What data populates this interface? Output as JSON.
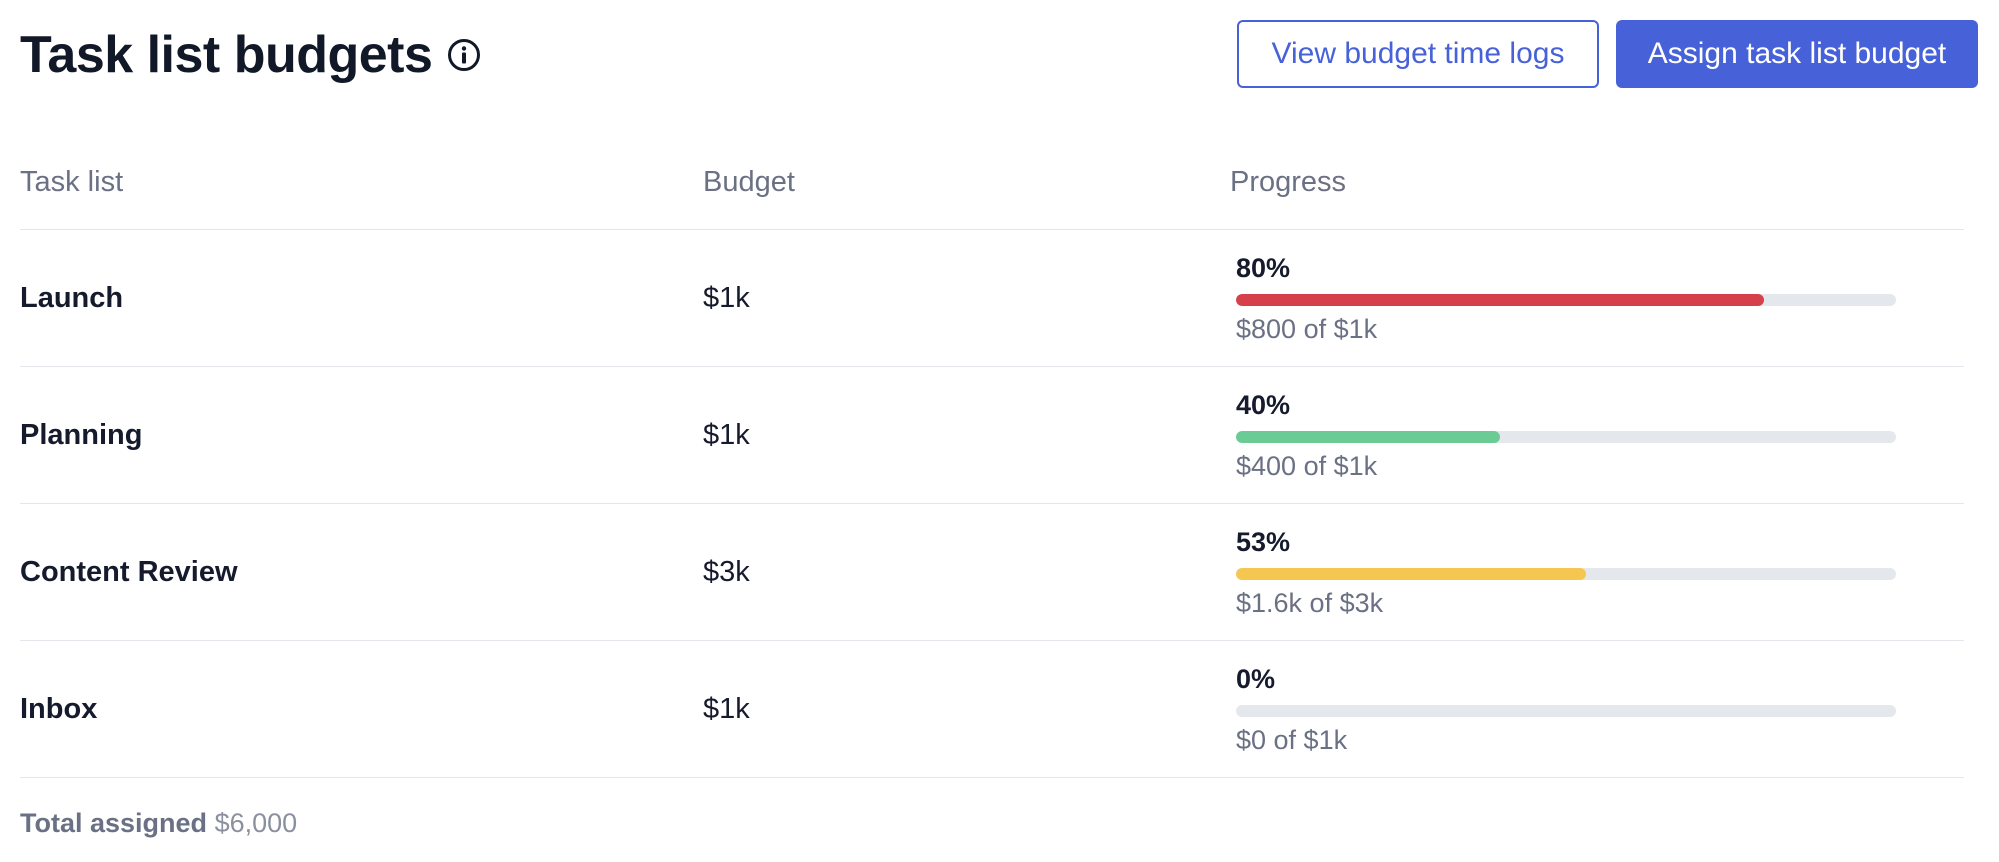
{
  "header": {
    "title": "Task list budgets",
    "view_logs_label": "View budget time logs",
    "assign_label": "Assign task list budget"
  },
  "table": {
    "columns": {
      "task": "Task list",
      "budget": "Budget",
      "progress": "Progress"
    },
    "rows": [
      {
        "task": "Launch",
        "budget": "$1k",
        "percent_label": "80%",
        "progress": 0.8,
        "spent": "$800 of $1k",
        "color": "#d5404a"
      },
      {
        "task": "Planning",
        "budget": "$1k",
        "percent_label": "40%",
        "progress": 0.4,
        "spent": "$400 of $1k",
        "color": "#6bcb94"
      },
      {
        "task": "Content Review",
        "budget": "$3k",
        "percent_label": "53%",
        "progress": 0.53,
        "spent": "$1.6k of $3k",
        "color": "#f5c750"
      },
      {
        "task": "Inbox",
        "budget": "$1k",
        "percent_label": "0%",
        "progress": 0,
        "spent": "$0 of $1k",
        "color": "#d5404a"
      }
    ]
  },
  "footer": {
    "total_label": "Total assigned",
    "total_value": "$6,000"
  },
  "colors": {
    "accent": "#4761d9",
    "track": "#e4e7ec"
  },
  "icons": {
    "title_icon": "info-icon"
  }
}
